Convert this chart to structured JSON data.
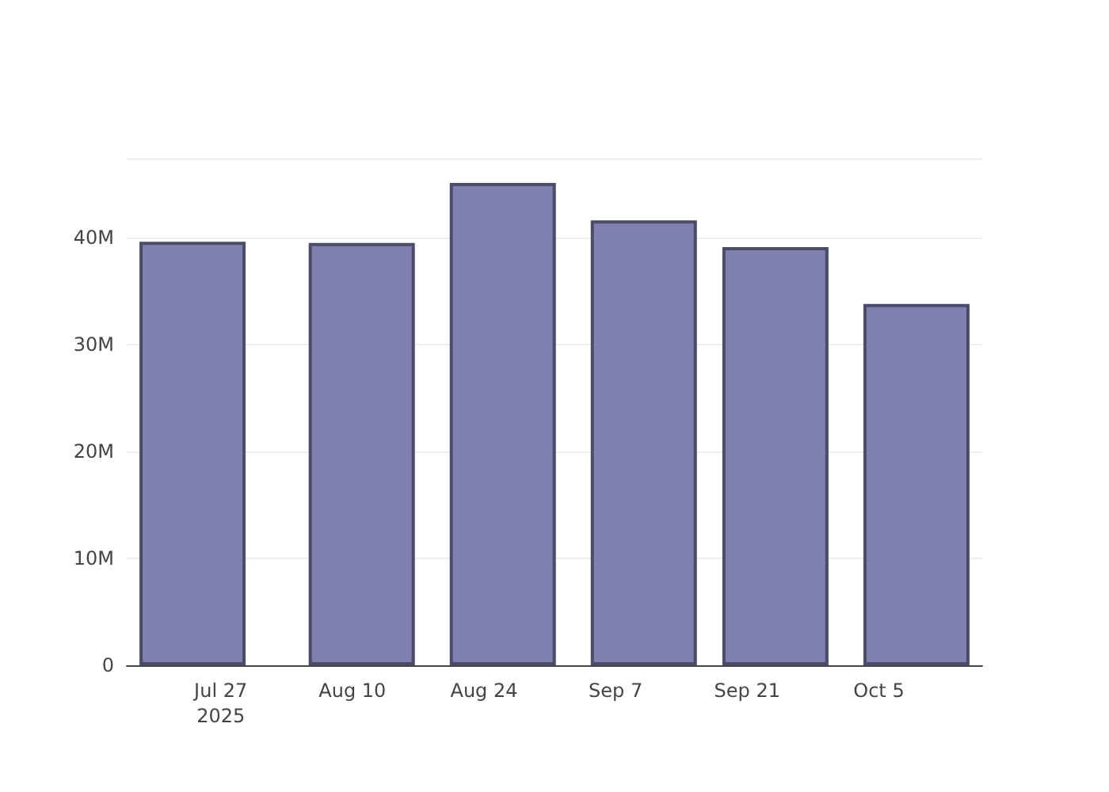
{
  "chart_data": {
    "type": "bar",
    "x": [
      "2025-07-24",
      "2025-08-11",
      "2025-08-26",
      "2025-09-10",
      "2025-09-24",
      "2025-10-09"
    ],
    "values": [
      39.6,
      39.5,
      45.1,
      41.6,
      39.1,
      33.8
    ],
    "color": "#7f7fb0",
    "xlim": [
      "2025-07-17",
      "2025-10-16"
    ],
    "xticks": [
      {
        "value": "2025-07-27",
        "label": "Jul 27\n2025"
      },
      {
        "value": "2025-08-10",
        "label": "Aug 10"
      },
      {
        "value": "2025-08-24",
        "label": "Aug 24"
      },
      {
        "value": "2025-09-07",
        "label": "Sep 7"
      },
      {
        "value": "2025-09-21",
        "label": "Sep 21"
      },
      {
        "value": "2025-10-05",
        "label": "Oct 5"
      }
    ],
    "ylim": [
      0,
      47.4
    ],
    "yticks": [
      {
        "value": 0,
        "label": "0"
      },
      {
        "value": 10,
        "label": "10M"
      },
      {
        "value": 20,
        "label": "20M"
      },
      {
        "value": 30,
        "label": "30M"
      },
      {
        "value": 40,
        "label": "40M"
      }
    ],
    "grid": "y"
  }
}
